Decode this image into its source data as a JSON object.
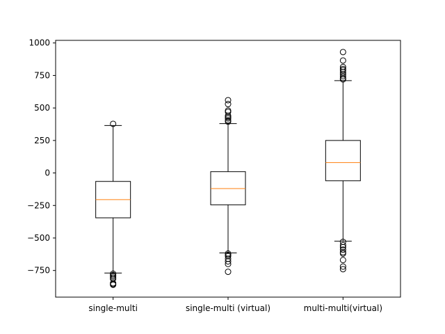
{
  "chart_data": {
    "type": "boxplot",
    "title": "",
    "xlabel": "",
    "ylabel": "",
    "categories": [
      "single-multi",
      "single-multi (virtual)",
      "multi-multi(virtual)"
    ],
    "ylim": [
      -955,
      1020
    ],
    "yticks": [
      -750,
      -500,
      -250,
      0,
      250,
      500,
      750,
      1000
    ],
    "ytick_labels": [
      "−750",
      "−500",
      "−250",
      "0",
      "250",
      "500",
      "750",
      "1000"
    ],
    "grid": false,
    "boxes": [
      {
        "label": "single-multi",
        "whisker_low": -770,
        "q1": -345,
        "median": -205,
        "q3": -65,
        "whisker_high": 365,
        "outliers": [
          378,
          -775,
          -785,
          -795,
          -805,
          -815,
          -848,
          -855,
          -860
        ]
      },
      {
        "label": "single-multi (virtual)",
        "whisker_low": -615,
        "q1": -245,
        "median": -120,
        "q3": 10,
        "whisker_high": 380,
        "outliers": [
          395,
          405,
          420,
          430,
          440,
          470,
          480,
          530,
          560,
          -620,
          -630,
          -640,
          -660,
          -680,
          -700,
          -760
        ]
      },
      {
        "label": "multi-multi(virtual)",
        "whisker_low": -525,
        "q1": -60,
        "median": 80,
        "q3": 250,
        "whisker_high": 710,
        "outliers": [
          720,
          730,
          745,
          760,
          775,
          790,
          800,
          815,
          865,
          930,
          -530,
          -555,
          -570,
          -590,
          -610,
          -620,
          -670,
          -720,
          -740
        ]
      }
    ],
    "colors": {
      "box": "#000000",
      "median": "#ff7f0e",
      "background": "#ffffff"
    }
  }
}
